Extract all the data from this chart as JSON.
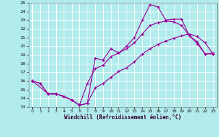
{
  "xlabel": "Windchill (Refroidissement éolien,°C)",
  "bg_color": "#b2ebeb",
  "line_color": "#990099",
  "grid_color": "#ffffff",
  "xlim": [
    -0.5,
    23.5
  ],
  "ylim": [
    13,
    25
  ],
  "xticks": [
    0,
    1,
    2,
    3,
    4,
    5,
    6,
    7,
    8,
    9,
    10,
    11,
    12,
    13,
    14,
    15,
    16,
    17,
    18,
    19,
    20,
    21,
    22,
    23
  ],
  "yticks": [
    13,
    14,
    15,
    16,
    17,
    18,
    19,
    20,
    21,
    22,
    23,
    24,
    25
  ],
  "line1_x": [
    0,
    1,
    2,
    3,
    4,
    5,
    6,
    7,
    8,
    9,
    10,
    11,
    12,
    13,
    14,
    15,
    16,
    17,
    18,
    19,
    20,
    21,
    22,
    23
  ],
  "line1_y": [
    16.0,
    15.7,
    14.5,
    14.5,
    14.2,
    13.8,
    13.2,
    13.4,
    18.6,
    18.4,
    19.7,
    19.2,
    20.0,
    21.0,
    23.0,
    24.8,
    24.5,
    23.0,
    23.1,
    23.1,
    21.2,
    20.5,
    19.1,
    19.2
  ],
  "line2_x": [
    0,
    1,
    2,
    3,
    4,
    5,
    6,
    7,
    8,
    9,
    10,
    11,
    12,
    13,
    14,
    15,
    16,
    17,
    18,
    19,
    20,
    21,
    22,
    23
  ],
  "line2_y": [
    16.0,
    15.7,
    14.5,
    14.5,
    14.2,
    13.8,
    13.2,
    15.7,
    17.4,
    17.8,
    18.8,
    19.2,
    19.7,
    20.4,
    21.4,
    22.4,
    22.7,
    22.9,
    22.8,
    22.4,
    21.2,
    20.3,
    19.1,
    19.1
  ],
  "line3_x": [
    0,
    2,
    3,
    4,
    5,
    6,
    7,
    8,
    9,
    10,
    11,
    12,
    13,
    14,
    15,
    16,
    17,
    18,
    19,
    20,
    21,
    22,
    23
  ],
  "line3_y": [
    16.0,
    14.5,
    14.5,
    14.2,
    13.8,
    13.2,
    13.4,
    15.2,
    15.7,
    16.4,
    17.1,
    17.5,
    18.2,
    19.1,
    19.7,
    20.2,
    20.6,
    20.9,
    21.2,
    21.4,
    21.1,
    20.4,
    19.1
  ]
}
